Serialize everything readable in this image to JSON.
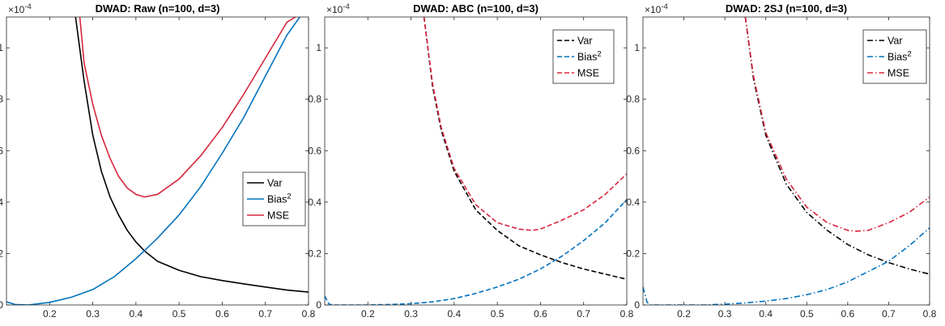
{
  "chart_data": [
    {
      "type": "line",
      "title": "DWAD: Raw (n=100, d=3)",
      "exponent_label": "×10",
      "exponent_power": "-4",
      "xlim": [
        0.1,
        0.8
      ],
      "ylim": [
        0,
        1.12
      ],
      "xticks": [
        "0.2",
        "0.3",
        "0.4",
        "0.5",
        "0.6",
        "0.7",
        "0.8"
      ],
      "yticks": [
        "0",
        "0.2",
        "0.4",
        "0.6",
        "0.8",
        "1"
      ],
      "legend_position": "center-right",
      "series": [
        {
          "name": "Var",
          "color": "#000000",
          "dash": "solid",
          "x": [
            0.26,
            0.28,
            0.3,
            0.32,
            0.34,
            0.36,
            0.38,
            0.4,
            0.42,
            0.45,
            0.5,
            0.55,
            0.6,
            0.65,
            0.7,
            0.75,
            0.8
          ],
          "y": [
            1.12,
            0.87,
            0.66,
            0.52,
            0.42,
            0.35,
            0.29,
            0.245,
            0.21,
            0.17,
            0.135,
            0.11,
            0.095,
            0.082,
            0.07,
            0.058,
            0.05
          ]
        },
        {
          "name": "Bias",
          "name_sup": "2",
          "color": "#0072BD",
          "dash": "solid",
          "x": [
            0.1,
            0.12,
            0.15,
            0.2,
            0.25,
            0.3,
            0.35,
            0.4,
            0.45,
            0.5,
            0.55,
            0.6,
            0.65,
            0.7,
            0.75,
            0.78
          ],
          "y": [
            0.012,
            0.002,
            0.0,
            0.01,
            0.03,
            0.06,
            0.11,
            0.18,
            0.26,
            0.35,
            0.46,
            0.59,
            0.73,
            0.89,
            1.05,
            1.12
          ]
        },
        {
          "name": "MSE",
          "color": "#D7263D",
          "dash": "solid",
          "x": [
            0.27,
            0.28,
            0.3,
            0.32,
            0.34,
            0.36,
            0.38,
            0.4,
            0.42,
            0.45,
            0.5,
            0.55,
            0.6,
            0.65,
            0.7,
            0.75,
            0.77
          ],
          "y": [
            1.12,
            0.94,
            0.78,
            0.66,
            0.57,
            0.5,
            0.455,
            0.43,
            0.42,
            0.43,
            0.49,
            0.58,
            0.69,
            0.82,
            0.96,
            1.1,
            1.12
          ]
        }
      ]
    },
    {
      "type": "line",
      "title": "DWAD: ABC (n=100, d=3)",
      "exponent_label": "×10",
      "exponent_power": "-4",
      "xlim": [
        0.1,
        0.8
      ],
      "ylim": [
        0,
        1.12
      ],
      "xticks": [
        "0.2",
        "0.3",
        "0.4",
        "0.5",
        "0.6",
        "0.7",
        "0.8"
      ],
      "yticks": [
        "0",
        "0.2",
        "0.4",
        "0.6",
        "0.8",
        "1"
      ],
      "legend_position": "top-right",
      "series": [
        {
          "name": "Var",
          "color": "#000000",
          "dash": "dashed",
          "x": [
            0.33,
            0.35,
            0.37,
            0.4,
            0.45,
            0.5,
            0.55,
            0.6,
            0.65,
            0.7,
            0.75,
            0.8
          ],
          "y": [
            1.12,
            0.85,
            0.68,
            0.52,
            0.37,
            0.29,
            0.23,
            0.195,
            0.165,
            0.14,
            0.12,
            0.1
          ]
        },
        {
          "name": "Bias",
          "name_sup": "2",
          "color": "#0072BD",
          "dash": "dashed",
          "x": [
            0.1,
            0.11,
            0.12,
            0.15,
            0.2,
            0.25,
            0.3,
            0.35,
            0.4,
            0.45,
            0.5,
            0.55,
            0.6,
            0.65,
            0.7,
            0.75,
            0.8
          ],
          "y": [
            0.035,
            0.003,
            0.0,
            0.0,
            0.0,
            0.002,
            0.005,
            0.012,
            0.025,
            0.045,
            0.07,
            0.1,
            0.14,
            0.19,
            0.25,
            0.32,
            0.41
          ]
        },
        {
          "name": "MSE",
          "color": "#D7263D",
          "dash": "dashed",
          "x": [
            0.33,
            0.35,
            0.37,
            0.4,
            0.45,
            0.5,
            0.55,
            0.58,
            0.6,
            0.65,
            0.7,
            0.75,
            0.8
          ],
          "y": [
            1.12,
            0.86,
            0.69,
            0.53,
            0.39,
            0.32,
            0.295,
            0.29,
            0.295,
            0.33,
            0.37,
            0.43,
            0.51
          ]
        }
      ]
    },
    {
      "type": "line",
      "title": "DWAD: 2SJ (n=100, d=3)",
      "exponent_label": "×10",
      "exponent_power": "-4",
      "xlim": [
        0.1,
        0.8
      ],
      "ylim": [
        0,
        1.12
      ],
      "xticks": [
        "0.2",
        "0.3",
        "0.4",
        "0.5",
        "0.6",
        "0.7",
        "0.8"
      ],
      "yticks": [
        "0",
        "0.2",
        "0.4",
        "0.6",
        "0.8",
        "1"
      ],
      "legend_position": "top-right",
      "series": [
        {
          "name": "Var",
          "color": "#000000",
          "dash": "dashdot",
          "x": [
            0.35,
            0.37,
            0.4,
            0.45,
            0.5,
            0.55,
            0.6,
            0.65,
            0.7,
            0.75,
            0.8
          ],
          "y": [
            1.12,
            0.88,
            0.66,
            0.47,
            0.36,
            0.29,
            0.235,
            0.195,
            0.165,
            0.14,
            0.12
          ]
        },
        {
          "name": "Bias",
          "name_sup": "2",
          "color": "#0072BD",
          "dash": "dashdot",
          "x": [
            0.1,
            0.11,
            0.12,
            0.15,
            0.2,
            0.25,
            0.3,
            0.35,
            0.4,
            0.45,
            0.5,
            0.55,
            0.6,
            0.65,
            0.7,
            0.75,
            0.8
          ],
          "y": [
            0.07,
            0.01,
            0.0,
            0.0,
            0.0,
            0.0,
            0.003,
            0.008,
            0.015,
            0.025,
            0.04,
            0.06,
            0.09,
            0.13,
            0.17,
            0.23,
            0.3
          ]
        },
        {
          "name": "MSE",
          "color": "#D7263D",
          "dash": "dashdot",
          "x": [
            0.35,
            0.37,
            0.4,
            0.45,
            0.5,
            0.55,
            0.6,
            0.62,
            0.65,
            0.7,
            0.75,
            0.8
          ],
          "y": [
            1.12,
            0.89,
            0.67,
            0.49,
            0.38,
            0.32,
            0.29,
            0.287,
            0.29,
            0.32,
            0.36,
            0.42
          ]
        }
      ]
    }
  ]
}
